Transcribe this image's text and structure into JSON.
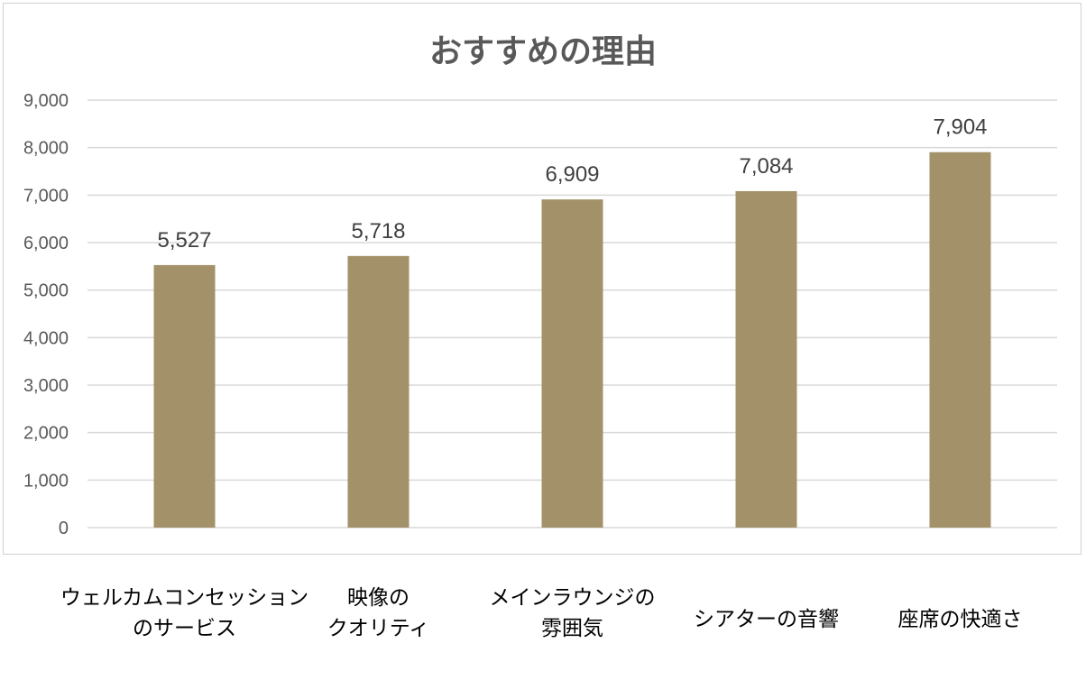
{
  "chart_data": {
    "type": "bar",
    "title": "おすすめの理由",
    "categories": [
      [
        "ウェルカムコンセッション",
        "のサービス"
      ],
      [
        "映像の",
        "クオリティ"
      ],
      [
        "メインラウンジの",
        "雰囲気"
      ],
      [
        "シアターの音響"
      ],
      [
        "座席の快適さ"
      ]
    ],
    "values": [
      5527,
      5718,
      6909,
      7084,
      7904
    ],
    "data_labels": [
      "5,527",
      "5,718",
      "6,909",
      "7,084",
      "7,904"
    ],
    "ylim": [
      0,
      9000
    ],
    "yticks": [
      0,
      1000,
      2000,
      3000,
      4000,
      5000,
      6000,
      7000,
      8000,
      9000
    ],
    "ytick_labels": [
      "0",
      "1,000",
      "2,000",
      "3,000",
      "4,000",
      "5,000",
      "6,000",
      "7,000",
      "8,000",
      "9,000"
    ],
    "grid": true,
    "bar_color": "#a39269",
    "grid_color": "#d9d9d9"
  }
}
